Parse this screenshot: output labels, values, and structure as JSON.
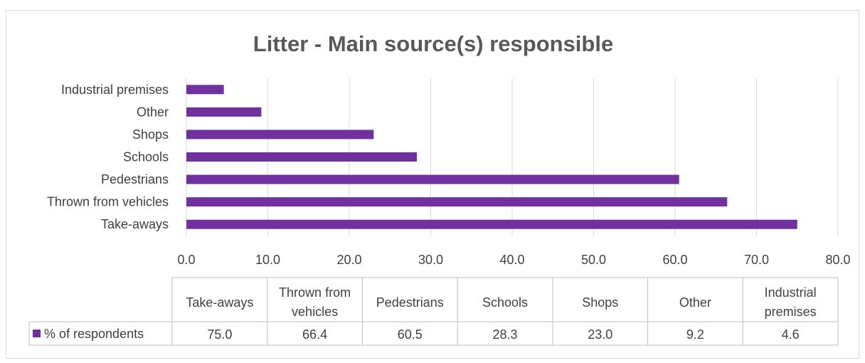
{
  "chart_data": {
    "type": "bar",
    "orientation": "horizontal",
    "title": "Litter - Main source(s) responsible",
    "categories": [
      "Take-aways",
      "Thrown from vehicles",
      "Pedestrians",
      "Schools",
      "Shops",
      "Other",
      "Industrial premises"
    ],
    "series": [
      {
        "name": "% of respondents",
        "values": [
          75.0,
          66.4,
          60.5,
          28.3,
          23.0,
          9.2,
          4.6
        ],
        "color": "#7030a0"
      }
    ],
    "xlim": [
      0,
      80
    ],
    "xticks": [
      "0.0",
      "10.0",
      "20.0",
      "30.0",
      "40.0",
      "50.0",
      "60.0",
      "70.0",
      "80.0"
    ],
    "grid": true,
    "data_table": {
      "headers": [
        [
          "Take-aways"
        ],
        [
          "Thrown from",
          "vehicles"
        ],
        [
          "Pedestrians"
        ],
        [
          "Schools"
        ],
        [
          "Shops"
        ],
        [
          "Other"
        ],
        [
          "Industrial",
          "premises"
        ]
      ],
      "values": [
        "75.0",
        "66.4",
        "60.5",
        "28.3",
        "23.0",
        "9.2",
        "4.6"
      ]
    }
  },
  "colors": {
    "bar": "#7030a0",
    "grid": "#d9d9d9",
    "table_border": "#bfbfbf",
    "title": "#595959",
    "text": "#404040"
  }
}
